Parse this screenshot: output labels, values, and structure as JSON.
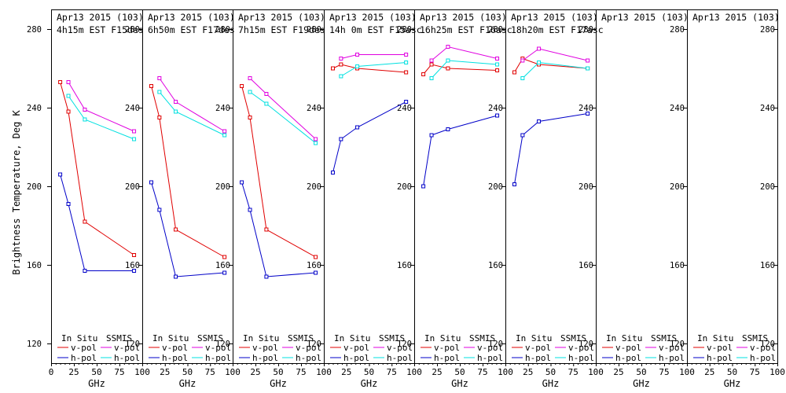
{
  "figure": {
    "ylabel": "Brightness Temperature, Deg K",
    "xlabel": "GHz",
    "legend": {
      "in_situ": "In Situ",
      "ssmis": "SSMIS",
      "vpol": "v-pol",
      "hpol": "h-pol"
    }
  },
  "colors": {
    "insitu_v": "#e00000",
    "insitu_h": "#0000c8",
    "ssmis_v": "#e000e0",
    "ssmis_h": "#00e0e0",
    "frame": "#000000"
  },
  "chart_data": {
    "type": "line",
    "ylim": [
      110,
      290
    ],
    "yticks": [
      120,
      160,
      200,
      240,
      280
    ],
    "xlim": [
      0,
      100
    ],
    "xticks": [
      0,
      25,
      50,
      75,
      100
    ],
    "xtick_labels": [
      "0",
      "25",
      "50",
      "75",
      "100"
    ],
    "xtick_labels_later": [
      "",
      "25",
      "50",
      "75",
      "100"
    ],
    "panels": [
      {
        "title": "Apr13 2015 (103)",
        "subtitle": "4h15m EST F15des",
        "series": [
          {
            "name": "In Situ v-pol",
            "key": "insitu_v",
            "x": [
              10,
              19,
              37,
              91
            ],
            "y": [
              253,
              238,
              182,
              165
            ]
          },
          {
            "name": "In Situ h-pol",
            "key": "insitu_h",
            "x": [
              10,
              19,
              37,
              91
            ],
            "y": [
              206,
              191,
              157,
              157
            ]
          },
          {
            "name": "SSMIS v-pol",
            "key": "ssmis_v",
            "x": [
              19,
              37,
              91
            ],
            "y": [
              253,
              239,
              228
            ]
          },
          {
            "name": "SSMIS h-pol",
            "key": "ssmis_h",
            "x": [
              19,
              37,
              91
            ],
            "y": [
              246,
              234,
              224
            ]
          }
        ]
      },
      {
        "title": "Apr13 2015 (103)",
        "subtitle": "6h50m EST F17des",
        "series": [
          {
            "name": "In Situ v-pol",
            "key": "insitu_v",
            "x": [
              10,
              19,
              37,
              91
            ],
            "y": [
              251,
              235,
              178,
              164
            ]
          },
          {
            "name": "In Situ h-pol",
            "key": "insitu_h",
            "x": [
              10,
              19,
              37,
              91
            ],
            "y": [
              202,
              188,
              154,
              156
            ]
          },
          {
            "name": "SSMIS v-pol",
            "key": "ssmis_v",
            "x": [
              19,
              37,
              91
            ],
            "y": [
              255,
              243,
              228
            ]
          },
          {
            "name": "SSMIS h-pol",
            "key": "ssmis_h",
            "x": [
              19,
              37,
              91
            ],
            "y": [
              248,
              238,
              226
            ]
          }
        ]
      },
      {
        "title": "Apr13 2015 (103)",
        "subtitle": "7h15m EST F19des",
        "series": [
          {
            "name": "In Situ v-pol",
            "key": "insitu_v",
            "x": [
              10,
              19,
              37,
              91
            ],
            "y": [
              251,
              235,
              178,
              164
            ]
          },
          {
            "name": "In Situ h-pol",
            "key": "insitu_h",
            "x": [
              10,
              19,
              37,
              91
            ],
            "y": [
              202,
              188,
              154,
              156
            ]
          },
          {
            "name": "SSMIS v-pol",
            "key": "ssmis_v",
            "x": [
              19,
              37,
              91
            ],
            "y": [
              255,
              247,
              224
            ]
          },
          {
            "name": "SSMIS h-pol",
            "key": "ssmis_h",
            "x": [
              19,
              37,
              91
            ],
            "y": [
              248,
              242,
              222
            ]
          }
        ]
      },
      {
        "title": "Apr13 2015 (103)",
        "subtitle": "14h 0m EST F15asc",
        "series": [
          {
            "name": "In Situ v-pol",
            "key": "insitu_v",
            "x": [
              10,
              19,
              37,
              91
            ],
            "y": [
              260,
              262,
              260,
              258
            ]
          },
          {
            "name": "In Situ h-pol",
            "key": "insitu_h",
            "x": [
              10,
              19,
              37,
              91
            ],
            "y": [
              207,
              224,
              230,
              243
            ]
          },
          {
            "name": "SSMIS v-pol",
            "key": "ssmis_v",
            "x": [
              19,
              37,
              91
            ],
            "y": [
              265,
              267,
              267
            ]
          },
          {
            "name": "SSMIS h-pol",
            "key": "ssmis_h",
            "x": [
              19,
              37,
              91
            ],
            "y": [
              256,
              261,
              263
            ]
          }
        ]
      },
      {
        "title": "Apr13 2015 (103)",
        "subtitle": "16h25m EST F16asc",
        "series": [
          {
            "name": "In Situ v-pol",
            "key": "insitu_v",
            "x": [
              10,
              19,
              37,
              91
            ],
            "y": [
              257,
              262,
              260,
              259
            ]
          },
          {
            "name": "In Situ h-pol",
            "key": "insitu_h",
            "x": [
              10,
              19,
              37,
              91
            ],
            "y": [
              200,
              226,
              229,
              236
            ]
          },
          {
            "name": "SSMIS v-pol",
            "key": "ssmis_v",
            "x": [
              19,
              37,
              91
            ],
            "y": [
              264,
              271,
              265
            ]
          },
          {
            "name": "SSMIS h-pol",
            "key": "ssmis_h",
            "x": [
              19,
              37,
              91
            ],
            "y": [
              255,
              264,
              262
            ]
          }
        ]
      },
      {
        "title": "Apr13 2015 (103)",
        "subtitle": "18h20m EST F17asc",
        "series": [
          {
            "name": "In Situ v-pol",
            "key": "insitu_v",
            "x": [
              10,
              19,
              37,
              91
            ],
            "y": [
              258,
              265,
              262,
              260
            ]
          },
          {
            "name": "In Situ h-pol",
            "key": "insitu_h",
            "x": [
              10,
              19,
              37,
              91
            ],
            "y": [
              201,
              226,
              233,
              237
            ]
          },
          {
            "name": "SSMIS v-pol",
            "key": "ssmis_v",
            "x": [
              19,
              37,
              91
            ],
            "y": [
              264,
              270,
              264
            ]
          },
          {
            "name": "SSMIS h-pol",
            "key": "ssmis_h",
            "x": [
              19,
              37,
              91
            ],
            "y": [
              255,
              263,
              260
            ]
          }
        ]
      },
      {
        "title": "Apr13 2015 (103)",
        "subtitle": "",
        "series": []
      },
      {
        "title": "Apr13 2015 (103)",
        "subtitle": "",
        "series": []
      }
    ]
  }
}
